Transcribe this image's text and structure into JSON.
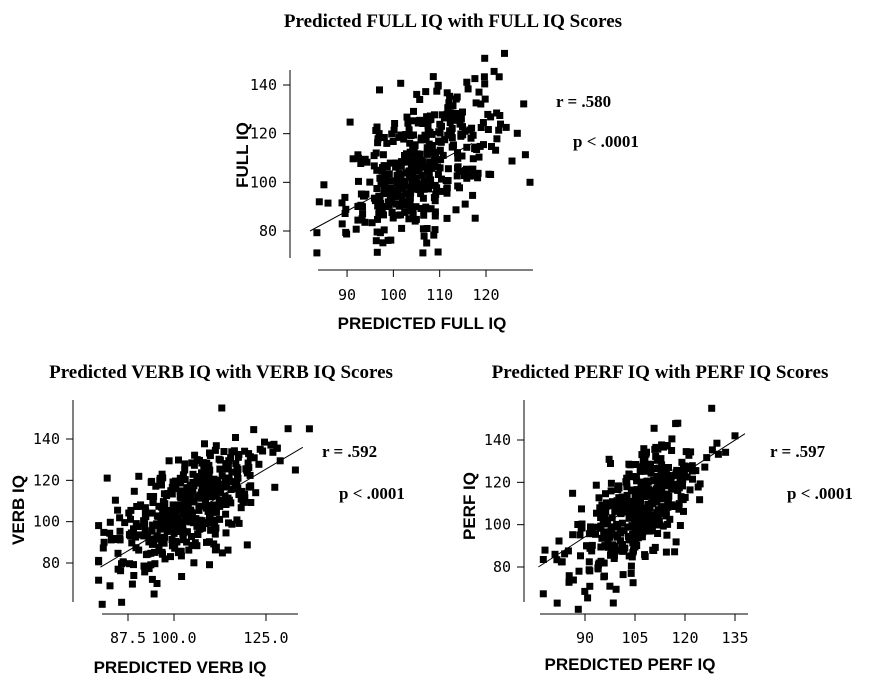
{
  "chart_data": [
    {
      "type": "scatter",
      "title": "Predicted FULL IQ with FULL IQ Scores",
      "xlabel": "PREDICTED FULL IQ",
      "ylabel": "FULL IQ",
      "xlim": [
        82,
        130
      ],
      "ylim": [
        68,
        155
      ],
      "xticks": [
        90,
        100,
        110,
        120
      ],
      "xtick_labels": [
        "90",
        "100",
        "110",
        "120"
      ],
      "yticks": [
        80,
        100,
        120,
        140
      ],
      "ytick_labels": [
        "80",
        "100",
        "120",
        "140"
      ],
      "annotations": [
        "r = .580",
        "p < .0001"
      ],
      "fit_line": {
        "x": [
          82,
          117
        ],
        "y": [
          80,
          116
        ]
      },
      "points": {
        "n": 400,
        "x_mean": 106,
        "x_sd": 8,
        "y_mean": 107,
        "y_sd": 16,
        "r": 0.58,
        "extremes": [
          [
            129.5,
            100
          ],
          [
            124,
            153
          ],
          [
            97,
            138
          ],
          [
            84,
            92
          ],
          [
            85,
            99
          ]
        ]
      },
      "grid": false,
      "legend": "none"
    },
    {
      "type": "scatter",
      "title": "Predicted VERB IQ with VERB IQ Scores",
      "xlabel": "PREDICTED VERB IQ",
      "ylabel": "VERB IQ",
      "xlim": [
        78,
        140
      ],
      "ylim": [
        58,
        158
      ],
      "xticks": [
        87.5,
        100.0,
        125.0
      ],
      "xtick_labels": [
        "87.5",
        "100.0",
        "125.0"
      ],
      "yticks": [
        80,
        100,
        120,
        140
      ],
      "ytick_labels": [
        "80",
        "100",
        "120",
        "140"
      ],
      "annotations": [
        "r = .592",
        "p < .0001"
      ],
      "fit_line": {
        "x": [
          80,
          135
        ],
        "y": [
          78,
          136
        ]
      },
      "points": {
        "n": 450,
        "x_mean": 104,
        "x_sd": 10,
        "y_mean": 106,
        "y_sd": 15,
        "r": 0.592,
        "extremes": [
          [
            80.5,
            60
          ],
          [
            81,
            90
          ],
          [
            113,
            155
          ],
          [
            133,
            125
          ],
          [
            131,
            145
          ]
        ]
      },
      "grid": false,
      "legend": "none"
    },
    {
      "type": "scatter",
      "title": "Predicted PERF IQ with PERF IQ Scores",
      "xlabel": "PREDICTED PERF IQ",
      "ylabel": "PERF IQ",
      "xlim": [
        76,
        140
      ],
      "ylim": [
        58,
        158
      ],
      "xticks": [
        90,
        105,
        120,
        135
      ],
      "xtick_labels": [
        "90",
        "105",
        "120",
        "135"
      ],
      "yticks": [
        80,
        100,
        120,
        140
      ],
      "ytick_labels": [
        "80",
        "100",
        "120",
        "140"
      ],
      "annotations": [
        "r = .597",
        "p < .0001"
      ],
      "fit_line": {
        "x": [
          76,
          138
        ],
        "y": [
          80,
          143
        ]
      },
      "points": {
        "n": 450,
        "x_mean": 106,
        "x_sd": 9,
        "y_mean": 106,
        "y_sd": 16,
        "r": 0.597,
        "extremes": [
          [
            88,
            60
          ],
          [
            128,
            155
          ],
          [
            135,
            142
          ],
          [
            78,
            88
          ],
          [
            81,
            86
          ]
        ]
      },
      "grid": false,
      "legend": "none"
    }
  ]
}
